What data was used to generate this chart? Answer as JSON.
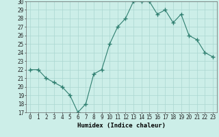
{
  "x": [
    0,
    1,
    2,
    3,
    4,
    5,
    6,
    7,
    8,
    9,
    10,
    11,
    12,
    13,
    14,
    15,
    16,
    17,
    18,
    19,
    20,
    21,
    22,
    23
  ],
  "y": [
    22,
    22,
    21,
    20.5,
    20,
    19,
    17,
    18,
    21.5,
    22,
    25,
    27,
    28,
    30,
    30,
    30,
    28.5,
    29,
    27.5,
    28.5,
    26,
    25.5,
    24,
    23.5
  ],
  "line_color": "#2d7d6e",
  "marker": "+",
  "marker_size": 4,
  "bg_color": "#cceee8",
  "grid_color": "#aad6d0",
  "xlabel": "Humidex (Indice chaleur)",
  "ylim": [
    17,
    30
  ],
  "xlim_min": -0.5,
  "xlim_max": 23.5,
  "yticks": [
    17,
    18,
    19,
    20,
    21,
    22,
    23,
    24,
    25,
    26,
    27,
    28,
    29,
    30
  ],
  "xticks": [
    0,
    1,
    2,
    3,
    4,
    5,
    6,
    7,
    8,
    9,
    10,
    11,
    12,
    13,
    14,
    15,
    16,
    17,
    18,
    19,
    20,
    21,
    22,
    23
  ],
  "xtick_labels": [
    "0",
    "1",
    "2",
    "3",
    "4",
    "5",
    "6",
    "7",
    "8",
    "9",
    "10",
    "11",
    "12",
    "13",
    "14",
    "15",
    "16",
    "17",
    "18",
    "19",
    "20",
    "21",
    "22",
    "23"
  ],
  "axis_fontsize": 6.5,
  "tick_fontsize": 5.5,
  "xlabel_fontsize": 6.5
}
